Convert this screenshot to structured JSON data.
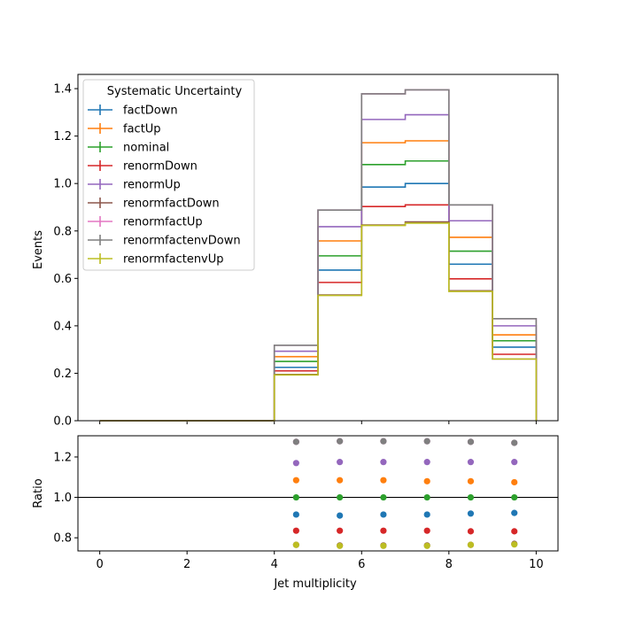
{
  "chart_data": [
    {
      "type": "line",
      "step": true,
      "ylabel": "Events",
      "xlim": [
        -0.5,
        10.5
      ],
      "ylim": [
        0,
        1.46
      ],
      "xticks": [
        "0",
        "2",
        "4",
        "6",
        "8",
        "10"
      ],
      "yticks": [
        "0.0",
        "0.2",
        "0.4",
        "0.6",
        "0.8",
        "1.0",
        "1.2",
        "1.4"
      ],
      "bin_edges": [
        0,
        1,
        2,
        3,
        4,
        5,
        6,
        7,
        8,
        9,
        10
      ],
      "legend_title": "Systematic Uncertainty",
      "legend_position": "upper-left",
      "series": [
        {
          "name": "factDown",
          "color": "#1f77b4",
          "values": [
            0,
            0,
            0,
            0,
            0.225,
            0.635,
            0.985,
            1.0,
            0.66,
            0.31
          ]
        },
        {
          "name": "factUp",
          "color": "#ff7f0e",
          "values": [
            0,
            0,
            0,
            0,
            0.27,
            0.758,
            1.172,
            1.18,
            0.773,
            0.362
          ]
        },
        {
          "name": "nominal",
          "color": "#2ca02c",
          "values": [
            0,
            0,
            0,
            0,
            0.25,
            0.695,
            1.08,
            1.095,
            0.715,
            0.337
          ]
        },
        {
          "name": "renormDown",
          "color": "#d62728",
          "values": [
            0,
            0,
            0,
            0,
            0.21,
            0.583,
            0.903,
            0.91,
            0.598,
            0.28
          ]
        },
        {
          "name": "renormUp",
          "color": "#9467bd",
          "values": [
            0,
            0,
            0,
            0,
            0.293,
            0.818,
            1.27,
            1.29,
            0.843,
            0.4
          ]
        },
        {
          "name": "renormfactDown",
          "color": "#8c564b",
          "values": [
            0,
            0,
            0,
            0,
            0.195,
            0.53,
            0.825,
            0.838,
            0.548,
            0.26
          ]
        },
        {
          "name": "renormfactUp",
          "color": "#e377c2",
          "values": [
            0,
            0,
            0,
            0,
            0.318,
            0.888,
            1.378,
            1.395,
            0.91,
            0.43
          ]
        },
        {
          "name": "renormfactenvDown",
          "color": "#7f7f7f",
          "values": [
            0,
            0,
            0,
            0,
            0.318,
            0.888,
            1.378,
            1.395,
            0.91,
            0.43
          ]
        },
        {
          "name": "renormfactenvUp",
          "color": "#bcbd22",
          "values": [
            0,
            0,
            0,
            0,
            0.193,
            0.528,
            0.823,
            0.833,
            0.545,
            0.26
          ]
        }
      ]
    },
    {
      "type": "scatter",
      "xlabel": "Jet multiplicity",
      "ylabel": "Ratio",
      "xlim": [
        -0.5,
        10.5
      ],
      "ylim": [
        0.735,
        1.305
      ],
      "xticks": [
        "0",
        "2",
        "4",
        "6",
        "8",
        "10"
      ],
      "yticks": [
        "0.8",
        "1.0",
        "1.2"
      ],
      "reference_line": 1.0,
      "x": [
        4.5,
        5.5,
        6.5,
        7.5,
        8.5,
        9.5
      ],
      "series": [
        {
          "color": "#1f77b4",
          "values": [
            0.915,
            0.91,
            0.915,
            0.915,
            0.92,
            0.923
          ]
        },
        {
          "color": "#ff7f0e",
          "values": [
            1.085,
            1.085,
            1.085,
            1.08,
            1.08,
            1.075
          ]
        },
        {
          "color": "#2ca02c",
          "values": [
            1.0,
            1.0,
            1.0,
            1.0,
            1.0,
            1.0
          ]
        },
        {
          "color": "#d62728",
          "values": [
            0.835,
            0.835,
            0.835,
            0.835,
            0.832,
            0.832
          ]
        },
        {
          "color": "#9467bd",
          "values": [
            1.17,
            1.175,
            1.175,
            1.175,
            1.175,
            1.175
          ]
        },
        {
          "color": "#8c564b",
          "values": [
            0.765,
            0.762,
            0.762,
            0.762,
            0.765,
            0.77
          ]
        },
        {
          "color": "#e377c2",
          "values": [
            1.275,
            1.278,
            1.278,
            1.278,
            1.275,
            1.27
          ]
        },
        {
          "color": "#7f7f7f",
          "values": [
            1.275,
            1.278,
            1.278,
            1.278,
            1.275,
            1.27
          ]
        },
        {
          "color": "#bcbd22",
          "values": [
            0.765,
            0.76,
            0.76,
            0.76,
            0.765,
            0.767
          ]
        }
      ]
    }
  ]
}
